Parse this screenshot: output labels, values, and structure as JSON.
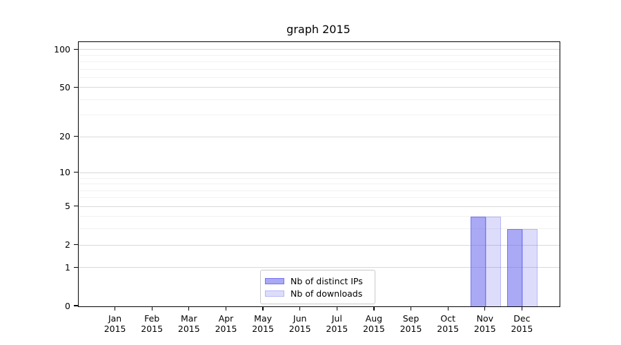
{
  "title": "graph 2015",
  "chart_data": {
    "type": "bar",
    "title": "graph 2015",
    "categories": [
      "Jan",
      "Feb",
      "Mar",
      "Apr",
      "May",
      "Jun",
      "Jul",
      "Aug",
      "Sep",
      "Oct",
      "Nov",
      "Dec"
    ],
    "x_year": "2015",
    "series": [
      {
        "name": "Nb of distinct IPs",
        "values": [
          0,
          0,
          0,
          0,
          0,
          0,
          0,
          0,
          0,
          0,
          4,
          3
        ]
      },
      {
        "name": "Nb of downloads",
        "values": [
          0,
          0,
          0,
          0,
          0,
          0,
          0,
          0,
          0,
          0,
          4,
          3
        ]
      }
    ],
    "y_axis": {
      "scale": "log10(value+1)",
      "tick_values": [
        0,
        1,
        2,
        5,
        10,
        20,
        50,
        100
      ],
      "minor_gridline_values": [
        3,
        4,
        6,
        7,
        8,
        9,
        30,
        40,
        60,
        70,
        80,
        90
      ],
      "ylim": [
        0,
        115
      ]
    },
    "grid": true,
    "legend": {
      "position": "lower center",
      "entries": [
        "Nb of distinct IPs",
        "Nb of downloads"
      ]
    }
  },
  "colors": {
    "background": "#ffffff",
    "spine": "#000000",
    "text": "#000000",
    "major_grid": "#d8d8d8",
    "minor_grid": "#f1f1f1",
    "legend_border": "#c9c9c9",
    "series1_fill": "rgba(99,99,237,0.55)",
    "series1_edge": "rgba(99,99,237,0.75)",
    "series2_fill": "rgba(99,99,237,0.22)",
    "series2_edge": "rgba(99,99,237,0.33)"
  }
}
